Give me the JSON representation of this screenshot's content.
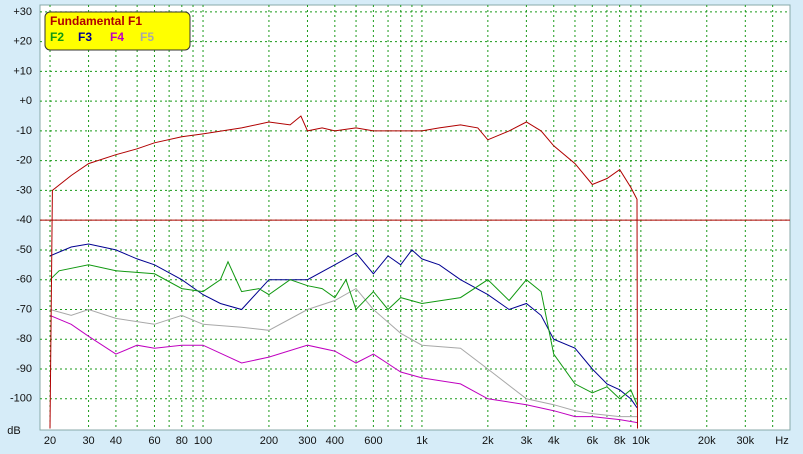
{
  "chart_data": {
    "type": "line",
    "x_label": "Hz",
    "y_label": "dB",
    "log_x": true,
    "grid": true,
    "xlim": [
      18,
      48000
    ],
    "ylim": [
      -110.5,
      32.3
    ],
    "xticks": [
      20,
      30,
      40,
      60,
      80,
      100,
      200,
      300,
      400,
      600,
      {
        "value": 1000,
        "label": "1k"
      },
      {
        "value": 2000,
        "label": "2k"
      },
      {
        "value": 3000,
        "label": "3k"
      },
      {
        "value": 4000,
        "label": "4k"
      },
      {
        "value": 6000,
        "label": "6k"
      },
      {
        "value": 8000,
        "label": "8k"
      },
      {
        "value": 10000,
        "label": "10k"
      },
      {
        "value": 20000,
        "label": "20k"
      },
      {
        "value": 30000,
        "label": "30k"
      }
    ],
    "xgrid": [
      20,
      30,
      40,
      50,
      60,
      70,
      80,
      90,
      100,
      200,
      300,
      400,
      500,
      600,
      700,
      800,
      900,
      1000,
      2000,
      3000,
      4000,
      5000,
      6000,
      7000,
      8000,
      9000,
      10000,
      20000,
      30000,
      40000
    ],
    "yticks": [
      {
        "value": 30,
        "label": "+30"
      },
      {
        "value": 20,
        "label": "+20"
      },
      {
        "value": 10,
        "label": "+10"
      },
      {
        "value": 0,
        "label": "+0"
      },
      -10,
      -20,
      -30,
      -40,
      -50,
      -60,
      -70,
      -80,
      -90,
      -100
    ],
    "threshold": -40,
    "threshold_color": "#b00000",
    "legend_position": "top-left",
    "series": [
      {
        "name": "Fundamental F1",
        "color": "#b00000",
        "x": [
          20,
          20.5,
          25,
          30,
          40,
          50,
          60,
          80,
          100,
          150,
          200,
          250,
          280,
          300,
          350,
          400,
          500,
          600,
          800,
          1000,
          1200,
          1500,
          1800,
          2000,
          2500,
          3000,
          3500,
          4000,
          5000,
          6000,
          7000,
          8000,
          9000,
          9600,
          9650
        ],
        "values": [
          -110,
          -30,
          -25,
          -21,
          -18,
          -16,
          -14,
          -12,
          -11,
          -9,
          -7,
          -8,
          -5,
          -10,
          -9,
          -10,
          -9,
          -10,
          -10,
          -10,
          -9,
          -8,
          -9,
          -13,
          -10,
          -7,
          -10,
          -15,
          -21,
          -28,
          -26,
          -23,
          -29,
          -33,
          -110
        ]
      },
      {
        "name": "F2",
        "color": "#119911",
        "x": [
          20,
          22,
          30,
          40,
          60,
          80,
          100,
          120,
          130,
          150,
          180,
          200,
          250,
          300,
          350,
          400,
          450,
          500,
          600,
          700,
          800,
          1000,
          1500,
          2000,
          2500,
          3000,
          3500,
          4000,
          5000,
          6000,
          7000,
          8000,
          9000,
          9600
        ],
        "values": [
          -60,
          -57,
          -55,
          -57,
          -58,
          -63,
          -64,
          -60,
          -54,
          -64,
          -63,
          -65,
          -60,
          -62,
          -63,
          -66,
          -60,
          -70,
          -64,
          -70,
          -66,
          -68,
          -66,
          -60,
          -67,
          -60,
          -64,
          -85,
          -95,
          -98,
          -96,
          -100,
          -97,
          -102
        ]
      },
      {
        "name": "F3",
        "color": "#000090",
        "x": [
          20,
          25,
          30,
          40,
          50,
          60,
          80,
          100,
          120,
          150,
          200,
          300,
          400,
          500,
          600,
          700,
          800,
          900,
          1000,
          1200,
          1500,
          2000,
          2500,
          3000,
          3500,
          4000,
          5000,
          6000,
          7000,
          8000,
          9000,
          9600
        ],
        "values": [
          -52,
          -49,
          -48,
          -50,
          -53,
          -55,
          -60,
          -65,
          -68,
          -70,
          -60,
          -60,
          -55,
          -51,
          -58,
          -52,
          -55,
          -50,
          -53,
          -55,
          -60,
          -65,
          -70,
          -68,
          -72,
          -80,
          -83,
          -90,
          -95,
          -97,
          -100,
          -103
        ]
      },
      {
        "name": "F4",
        "color": "#c000c0",
        "x": [
          20,
          25,
          30,
          40,
          50,
          60,
          80,
          100,
          150,
          200,
          300,
          400,
          500,
          600,
          800,
          1000,
          1500,
          2000,
          3000,
          4000,
          5000,
          6000,
          8000,
          9600
        ],
        "values": [
          -72,
          -75,
          -79,
          -85,
          -82,
          -83,
          -82,
          -82,
          -88,
          -86,
          -82,
          -84,
          -88,
          -85,
          -91,
          -93,
          -95,
          -100,
          -102,
          -104,
          -106,
          -106,
          -107,
          -108
        ]
      },
      {
        "name": "F5",
        "color": "#a8a8a8",
        "x": [
          20,
          25,
          30,
          40,
          60,
          80,
          100,
          150,
          200,
          300,
          400,
          500,
          600,
          800,
          1000,
          1500,
          2000,
          3000,
          4000,
          5000,
          6000,
          8000,
          9600
        ],
        "values": [
          -70,
          -72,
          -70,
          -73,
          -75,
          -72,
          -75,
          -76,
          -77,
          -70,
          -67,
          -63,
          -70,
          -78,
          -82,
          -83,
          -90,
          -100,
          -102,
          -104,
          -105,
          -106,
          -106
        ]
      }
    ]
  }
}
